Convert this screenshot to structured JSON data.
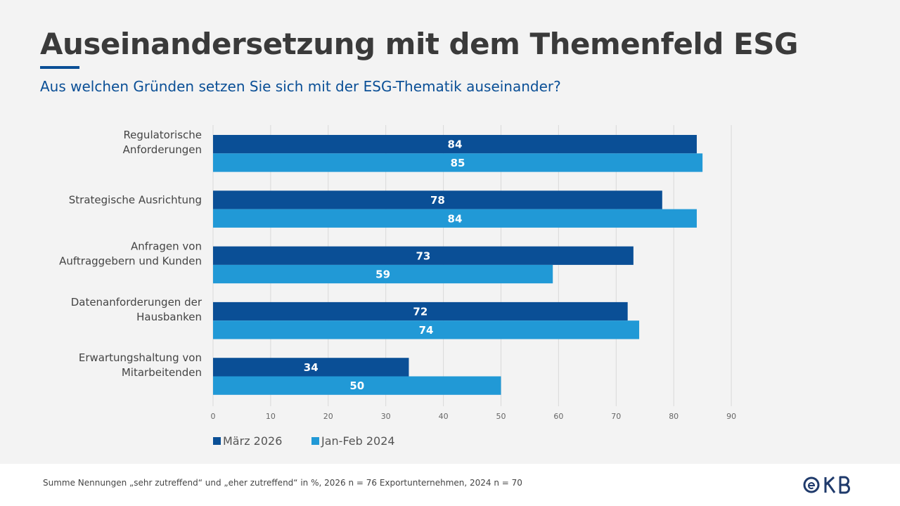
{
  "slide": {
    "title": "Auseinandersetzung mit dem Themenfeld ESG",
    "subtitle": "Aus welchen Gründen setzen Sie sich mit der ESG-Thematik auseinander?",
    "footnote": "Summe Nennungen „sehr zutreffend“ und „eher zutreffend“ in %, 2026 n = 76 Exportunternehmen, 2024 n = 70",
    "logo_text": "OeKB"
  },
  "colors": {
    "series_1": "#0a4f96",
    "series_2": "#2199d6",
    "title": "#3a3a3a",
    "subtitle": "#0a4f96",
    "grid": "#d9d9d9",
    "background": "#f3f3f3"
  },
  "chart_data": {
    "type": "bar",
    "orientation": "horizontal",
    "title": "",
    "xlabel": "",
    "ylabel": "",
    "categories": [
      [
        "Regulatorische",
        "Anforderungen"
      ],
      [
        "Strategische Ausrichtung"
      ],
      [
        "Anfragen von",
        "Auftraggebern und Kunden"
      ],
      [
        "Datenanforderungen der",
        "Hausbanken"
      ],
      [
        "Erwartungshaltung von",
        "Mitarbeitenden"
      ]
    ],
    "series": [
      {
        "name": "März 2026",
        "values": [
          84,
          78,
          73,
          72,
          34
        ]
      },
      {
        "name": "Jan-Feb 2024",
        "values": [
          85,
          84,
          59,
          74,
          50
        ]
      }
    ],
    "xlim": [
      0,
      90
    ],
    "xticks": [
      0,
      10,
      20,
      30,
      40,
      50,
      60,
      70,
      80,
      90
    ],
    "grid": "vertical",
    "legend_position": "bottom-left",
    "data_labels": true
  }
}
